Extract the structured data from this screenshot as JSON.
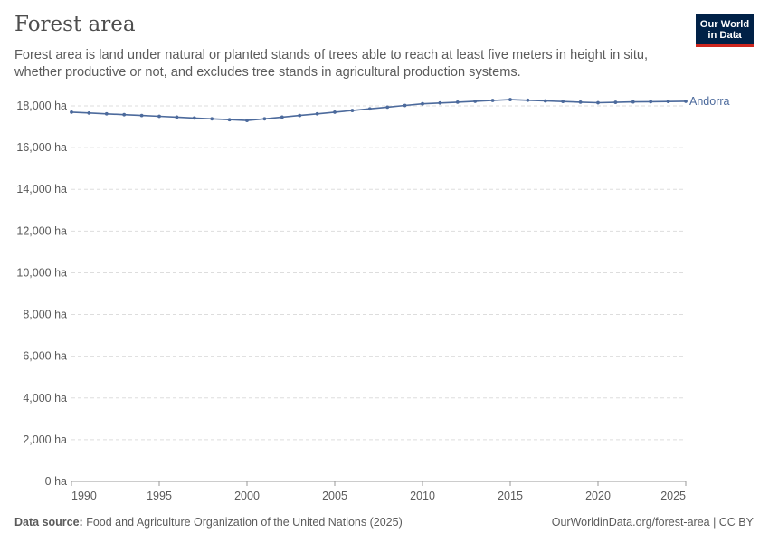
{
  "header": {
    "title": "Forest area",
    "subtitle": "Forest area is land under natural or planted stands of trees able to reach at least five meters in height in situ, whether productive or not, and excludes tree stands in agricultural production systems.",
    "logo_line1": "Our World",
    "logo_line2": "in Data"
  },
  "footer": {
    "source_label": "Data source:",
    "source_text": "Food and Agriculture Organization of the United Nations (2025)",
    "url_text": "OurWorldinData.org/forest-area | CC BY"
  },
  "colors": {
    "series": "#4c6a9c",
    "logo_bg": "#002147",
    "logo_accent": "#ce261e"
  },
  "chart_data": {
    "type": "line",
    "title": "Forest area",
    "xlabel": "",
    "ylabel": "",
    "xlim": [
      1990,
      2025
    ],
    "ylim": [
      0,
      18000
    ],
    "y_ticks": [
      "0 ha",
      "2,000 ha",
      "4,000 ha",
      "6,000 ha",
      "8,000 ha",
      "10,000 ha",
      "12,000 ha",
      "14,000 ha",
      "16,000 ha",
      "18,000 ha"
    ],
    "y_tick_values": [
      0,
      2000,
      4000,
      6000,
      8000,
      10000,
      12000,
      14000,
      16000,
      18000
    ],
    "x_ticks": [
      "1990",
      "1995",
      "2000",
      "2005",
      "2010",
      "2015",
      "2020",
      "2025"
    ],
    "x_tick_values": [
      1990,
      1995,
      2000,
      2005,
      2010,
      2015,
      2020,
      2025
    ],
    "grid": "horizontal-dashed",
    "series": [
      {
        "name": "Andorra",
        "x": [
          1990,
          1991,
          1992,
          1993,
          1994,
          1995,
          1996,
          1997,
          1998,
          1999,
          2000,
          2001,
          2002,
          2003,
          2004,
          2005,
          2006,
          2007,
          2008,
          2009,
          2010,
          2011,
          2012,
          2013,
          2014,
          2015,
          2016,
          2017,
          2018,
          2019,
          2020,
          2021,
          2022,
          2023,
          2024,
          2025
        ],
        "values": [
          17700,
          17660,
          17620,
          17580,
          17540,
          17500,
          17460,
          17420,
          17380,
          17340,
          17300,
          17380,
          17460,
          17540,
          17620,
          17700,
          17780,
          17860,
          17940,
          18020,
          18100,
          18140,
          18180,
          18220,
          18260,
          18300,
          18270,
          18240,
          18210,
          18180,
          18150,
          18170,
          18190,
          18200,
          18210,
          18220
        ]
      }
    ]
  }
}
